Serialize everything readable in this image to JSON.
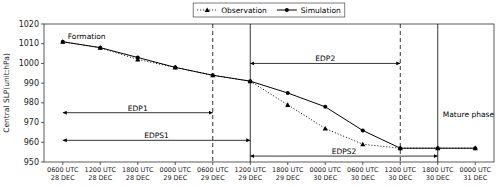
{
  "chart_data": {
    "type": "line",
    "ylabel": "Central SLP(unit:hPa)",
    "categories": [
      "0600 UTC\n28 DEC",
      "1200 UTC\n28 DEC",
      "1800 UTC\n28 DEC",
      "0000 UTC\n29 DEC",
      "0600 UTC\n29 DEC",
      "1200 UTC\n29 DEC",
      "1800 UTC\n29 DEC",
      "0000 UTC\n30 DEC",
      "0600 UTC\n30 DEC",
      "1200 UTC\n30 DEC",
      "1800 UTC\n30 DEC",
      "0000 UTC\n31 DEC"
    ],
    "series": [
      {
        "name": "Observation",
        "color": "#000000",
        "marker": "triangle",
        "line_style": "dotted",
        "values": [
          1011,
          1008,
          1002,
          998,
          994,
          991,
          979,
          967,
          959,
          957,
          957,
          957
        ]
      },
      {
        "name": "Simulation",
        "color": "#000000",
        "marker": "circle",
        "line_style": "solid",
        "values": [
          1011,
          1008,
          1003,
          998,
          994,
          991,
          985,
          978,
          966,
          957,
          957,
          957
        ]
      }
    ],
    "ylim": [
      950,
      1020
    ],
    "yticks": [
      950,
      960,
      970,
      980,
      990,
      1000,
      1010,
      1020
    ],
    "grid": false,
    "legend": "top",
    "vlines": [
      {
        "x": "0600 UTC\n29 DEC",
        "line_style": "dashed"
      },
      {
        "x": "1200 UTC\n30 DEC",
        "line_style": "dashed"
      },
      {
        "x": "1200 UTC\n29 DEC",
        "line_style": "solid"
      },
      {
        "x": "1800 UTC\n30 DEC",
        "line_style": "solid"
      }
    ],
    "annotations": [
      {
        "text": "Formation",
        "x": "0600 UTC\n28 DEC",
        "y": 1013.5
      },
      {
        "text": "EDP1",
        "from": "0600 UTC\n28 DEC",
        "to": "0600 UTC\n29 DEC",
        "y": 975
      },
      {
        "text": "EDPS1",
        "from": "0600 UTC\n28 DEC",
        "to": "1200 UTC\n29 DEC",
        "y": 961
      },
      {
        "text": "EDP2",
        "from": "1200 UTC\n29 DEC",
        "to": "1200 UTC\n30 DEC",
        "y": 1000
      },
      {
        "text": "EDPS2",
        "from": "1200 UTC\n29 DEC",
        "to": "1800 UTC\n30 DEC",
        "y": 953
      },
      {
        "text": "Mature phase",
        "x": "1800 UTC\n30 DEC",
        "y": 974
      }
    ]
  }
}
